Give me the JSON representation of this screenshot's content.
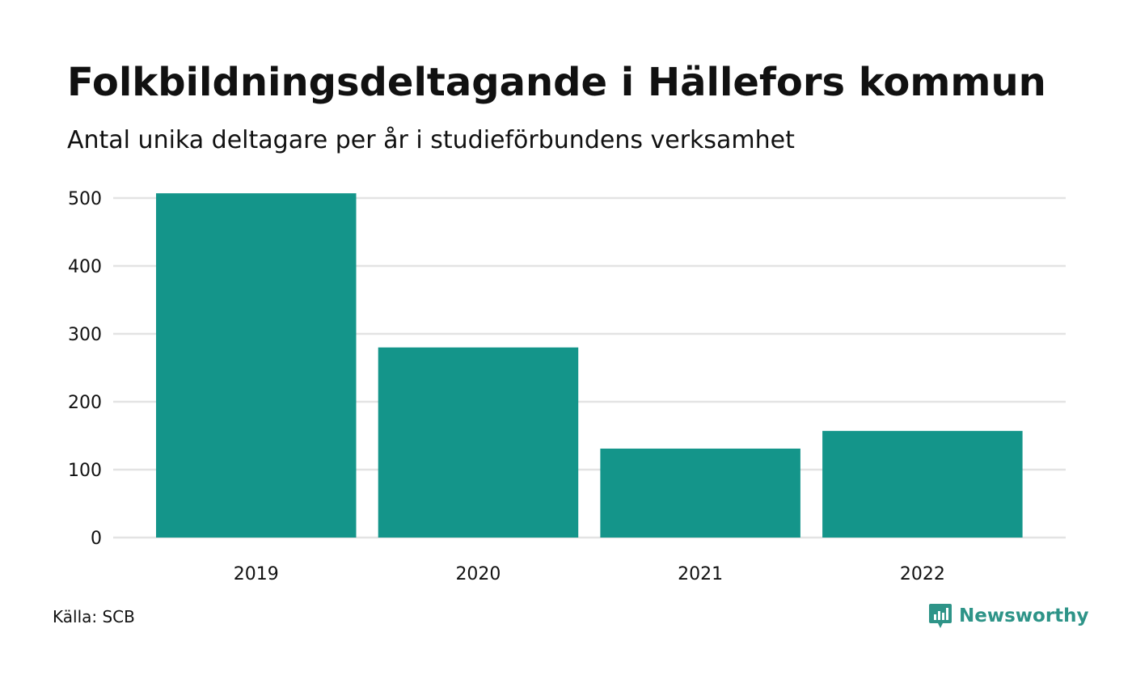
{
  "chart_data": {
    "type": "bar",
    "title": "Folkbildningsdeltagande i Hällefors kommun",
    "subtitle": "Antal unika deltagare per år i studieförbundens verksamhet",
    "categories": [
      "2019",
      "2020",
      "2021",
      "2022"
    ],
    "values": [
      507,
      280,
      131,
      157
    ],
    "ylim": [
      0,
      500
    ],
    "yticks": [
      0,
      100,
      200,
      300,
      400,
      500
    ],
    "grid": true,
    "legend": "none",
    "bar_color": "#14958a",
    "grid_color": "#e3e3e3"
  },
  "footer": {
    "source": "Källa: SCB",
    "brand": "Newsworthy",
    "brand_icon": "newsworthy-logo-icon",
    "brand_color": "#2e9488"
  }
}
